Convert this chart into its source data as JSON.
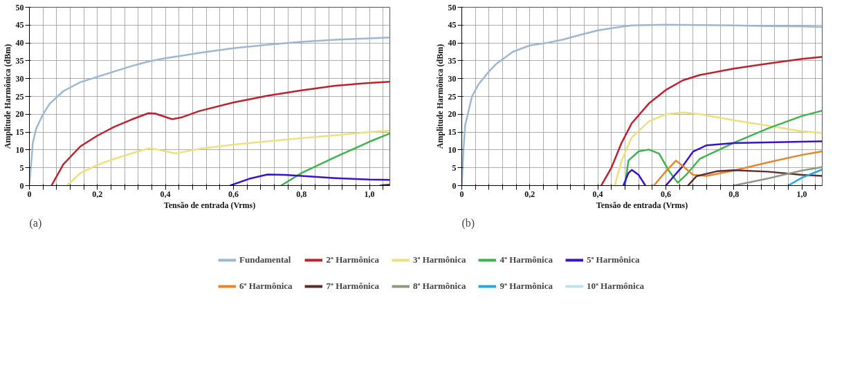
{
  "chart_data": [
    {
      "type": "line",
      "title": "(a)",
      "xlabel": "Tensão de entrada (Vrms)",
      "ylabel": "Amplitude Harmônica (dBm)",
      "xlim": [
        0,
        1.06
      ],
      "ylim": [
        0,
        50
      ],
      "xticks": [
        0,
        {
          "value": 0.04,
          "label": null
        },
        {
          "value": 0.08,
          "label": null
        },
        {
          "value": 0.12,
          "label": null
        },
        {
          "value": 0.16,
          "label": null
        },
        {
          "value": 0.2,
          "label": "0,2"
        },
        {
          "value": 0.24,
          "label": null
        },
        {
          "value": 0.28,
          "label": null
        },
        {
          "value": 0.32,
          "label": null
        },
        {
          "value": 0.36,
          "label": null
        },
        {
          "value": 0.4,
          "label": "0,4"
        },
        {
          "value": 0.44,
          "label": null
        },
        {
          "value": 0.48,
          "label": null
        },
        {
          "value": 0.52,
          "label": null
        },
        {
          "value": 0.56,
          "label": null
        },
        {
          "value": 0.6,
          "label": "0,6"
        },
        {
          "value": 0.64,
          "label": null
        },
        {
          "value": 0.68,
          "label": null
        },
        {
          "value": 0.72,
          "label": null
        },
        {
          "value": 0.76,
          "label": null
        },
        {
          "value": 0.8,
          "label": "0,8"
        },
        {
          "value": 0.84,
          "label": null
        },
        {
          "value": 0.88,
          "label": null
        },
        {
          "value": 0.92,
          "label": null
        },
        {
          "value": 0.96,
          "label": null
        },
        {
          "value": 1.0,
          "label": "1,0"
        },
        {
          "value": 1.04,
          "label": null
        }
      ],
      "yticks": [
        0,
        5,
        10,
        15,
        20,
        25,
        30,
        35,
        40,
        45,
        50
      ],
      "grid": true,
      "line_style": "solid",
      "marker": "none",
      "series": [
        {
          "color": "#9bb7d4",
          "x": [
            0,
            0.01,
            0.02,
            0.04,
            0.06,
            0.1,
            0.15,
            0.2,
            0.3,
            0.35,
            0.4,
            0.5,
            0.6,
            0.7,
            0.8,
            0.9,
            1.0,
            1.06
          ],
          "values": [
            0,
            12,
            16,
            20,
            23,
            26.5,
            29,
            30.5,
            33.5,
            34.8,
            35.7,
            37.2,
            38.5,
            39.5,
            40.3,
            40.9,
            41.3,
            41.5
          ]
        },
        {
          "color": "#c0202c",
          "x": [
            0.065,
            0.1,
            0.15,
            0.2,
            0.25,
            0.3,
            0.35,
            0.37,
            0.42,
            0.45,
            0.5,
            0.6,
            0.7,
            0.8,
            0.9,
            1.0,
            1.06
          ],
          "values": [
            0,
            6,
            11,
            14,
            16.5,
            18.5,
            20.3,
            20.2,
            18.6,
            19.2,
            20.9,
            23.3,
            25.2,
            26.7,
            28,
            28.8,
            29.1
          ]
        },
        {
          "color": "#ebe07a",
          "x": [
            0.11,
            0.15,
            0.2,
            0.25,
            0.3,
            0.35,
            0.37,
            0.43,
            0.5,
            0.6,
            0.7,
            0.8,
            0.9,
            1.0,
            1.06
          ],
          "values": [
            0,
            3.5,
            5.8,
            7.5,
            9,
            10.4,
            10.2,
            9,
            10.3,
            11.5,
            12.4,
            13.3,
            14.1,
            15,
            15.4
          ]
        },
        {
          "color": "#3cb44b",
          "x": [
            0.74,
            0.8,
            0.9,
            1.0,
            1.06
          ],
          "values": [
            0,
            3.5,
            8,
            12.3,
            14.6
          ]
        },
        {
          "color": "#3a10d0",
          "x": [
            0.59,
            0.65,
            0.7,
            0.75,
            0.8,
            0.9,
            1.0,
            1.06
          ],
          "values": [
            0,
            2,
            3.1,
            3,
            2.7,
            2.1,
            1.7,
            1.6
          ]
        },
        {
          "color": "#5a2c2c",
          "x": [
            1.03,
            1.06
          ],
          "values": [
            0,
            0.3
          ]
        }
      ]
    },
    {
      "type": "line",
      "title": "(b)",
      "xlabel": "Tensão de entrada (Vrms)",
      "ylabel": "Amplitude Harmônica (dBm)",
      "xlim": [
        0,
        1.06
      ],
      "ylim": [
        0,
        50
      ],
      "xticks": [
        0,
        {
          "value": 0.04,
          "label": null
        },
        {
          "value": 0.08,
          "label": null
        },
        {
          "value": 0.12,
          "label": null
        },
        {
          "value": 0.16,
          "label": null
        },
        {
          "value": 0.2,
          "label": "0,2"
        },
        {
          "value": 0.24,
          "label": null
        },
        {
          "value": 0.28,
          "label": null
        },
        {
          "value": 0.32,
          "label": null
        },
        {
          "value": 0.36,
          "label": null
        },
        {
          "value": 0.4,
          "label": "0,4"
        },
        {
          "value": 0.44,
          "label": null
        },
        {
          "value": 0.48,
          "label": null
        },
        {
          "value": 0.52,
          "label": null
        },
        {
          "value": 0.56,
          "label": null
        },
        {
          "value": 0.6,
          "label": "0,6"
        },
        {
          "value": 0.64,
          "label": null
        },
        {
          "value": 0.68,
          "label": null
        },
        {
          "value": 0.72,
          "label": null
        },
        {
          "value": 0.76,
          "label": null
        },
        {
          "value": 0.8,
          "label": "0,8"
        },
        {
          "value": 0.84,
          "label": null
        },
        {
          "value": 0.88,
          "label": null
        },
        {
          "value": 0.92,
          "label": null
        },
        {
          "value": 0.96,
          "label": null
        },
        {
          "value": 1.0,
          "label": "1,0"
        },
        {
          "value": 1.04,
          "label": null
        }
      ],
      "yticks": [
        0,
        5,
        10,
        15,
        20,
        25,
        30,
        35,
        40,
        45,
        50
      ],
      "grid": true,
      "line_style": "solid",
      "marker": "none",
      "legend": "bottom",
      "series": [
        {
          "name": "Fundamental",
          "color": "#9bb7d4",
          "x": [
            0,
            0.005,
            0.01,
            0.03,
            0.05,
            0.08,
            0.1,
            0.15,
            0.2,
            0.25,
            0.3,
            0.35,
            0.4,
            0.45,
            0.5,
            0.6,
            0.7,
            0.8,
            0.9,
            1.0,
            1.06
          ],
          "values": [
            0,
            10,
            17,
            25,
            28.5,
            32,
            34,
            37.5,
            39.3,
            40,
            41,
            42.3,
            43.5,
            44.3,
            44.9,
            45.1,
            45,
            44.9,
            44.7,
            44.6,
            44.5
          ]
        },
        {
          "name": "2ª Harmônica",
          "color": "#c0202c",
          "x": [
            0.41,
            0.44,
            0.47,
            0.5,
            0.55,
            0.6,
            0.65,
            0.7,
            0.8,
            0.9,
            1.0,
            1.06
          ],
          "values": [
            0,
            5,
            12,
            17.5,
            23,
            26.8,
            29.5,
            31,
            32.8,
            34.2,
            35.5,
            36.1
          ]
        },
        {
          "name": "3ª Harmônica",
          "color": "#ebe07a",
          "x": [
            0.45,
            0.47,
            0.5,
            0.55,
            0.6,
            0.65,
            0.7,
            0.8,
            0.9,
            1.0,
            1.06
          ],
          "values": [
            0,
            7,
            13.5,
            18,
            20,
            20.5,
            20,
            18.3,
            16.8,
            15.2,
            14.8
          ]
        },
        {
          "name": "4ª Harmônica",
          "color": "#3cb44b",
          "x": [
            0.48,
            0.49,
            0.52,
            0.55,
            0.58,
            0.61,
            0.635,
            0.66,
            0.7,
            0.8,
            0.9,
            1.0,
            1.06
          ],
          "values": [
            0,
            7,
            9.6,
            10.1,
            9,
            4,
            0.8,
            3,
            7.5,
            12,
            16,
            19.5,
            21
          ]
        },
        {
          "name": "5ª Harmônica",
          "color": "#3a10d0",
          "x": [
            0.475,
            0.49,
            0.5,
            0.52,
            0.54,
            0.57,
            0.6,
            0.65,
            0.68,
            0.72,
            0.8,
            0.9,
            1.0,
            1.06
          ],
          "values": [
            0,
            3.5,
            4.4,
            3,
            0,
            null,
            0,
            5.5,
            9.5,
            11.3,
            11.9,
            12.1,
            12.3,
            12.4
          ]
        },
        {
          "name": "6ª Harmônica",
          "color": "#e8832a",
          "x": [
            0.565,
            0.6,
            0.63,
            0.65,
            0.68,
            0.72,
            0.8,
            0.9,
            1.0,
            1.06
          ],
          "values": [
            0,
            4,
            7,
            5.5,
            3,
            2.7,
            4.2,
            6.5,
            8.6,
            9.6
          ]
        },
        {
          "name": "7ª Harmônica",
          "color": "#5a2c2c",
          "x": [
            0.665,
            0.69,
            0.75,
            0.8,
            0.9,
            1.0,
            1.06
          ],
          "values": [
            0,
            2.6,
            4,
            4.3,
            3.9,
            3,
            2.7
          ]
        },
        {
          "name": "8ª Harmônica",
          "color": "#8a9a80",
          "x": [
            0.8,
            0.9,
            1.0,
            1.06
          ],
          "values": [
            0,
            2,
            4.2,
            5.2
          ]
        },
        {
          "name": "9ª Harmônica",
          "color": "#20a8e0",
          "x": [
            0.96,
            1.0,
            1.06
          ],
          "values": [
            0,
            2.2,
            4.5
          ]
        },
        {
          "name": "10ª Harmônica",
          "color": "#b8e4e8"
        }
      ]
    }
  ]
}
